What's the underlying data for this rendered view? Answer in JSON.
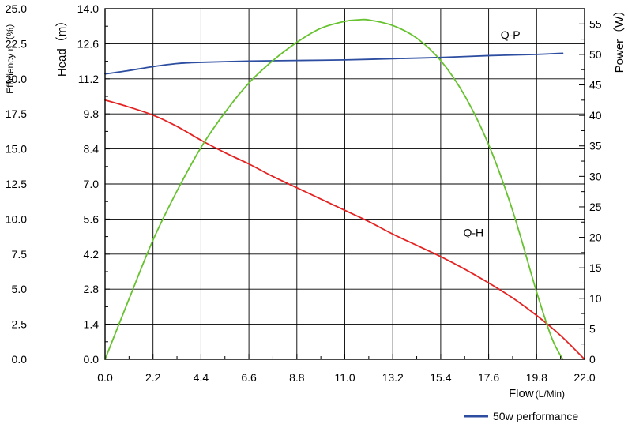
{
  "chart_data": {
    "type": "line",
    "xlabel": "Flow",
    "xlabel_unit": "(L/Min)",
    "x_ticks": [
      "0.0",
      "2.2",
      "4.4",
      "6.6",
      "8.8",
      "11.0",
      "13.2",
      "15.4",
      "17.6",
      "19.8",
      "22.0"
    ],
    "xlim": [
      0,
      22
    ],
    "axes": {
      "efficiency": {
        "label": "Efficiency η（%）",
        "ticks": [
          "0.0",
          "2.5",
          "5.0",
          "7.5",
          "10.0",
          "12.5",
          "15.0",
          "17.5",
          "20.0",
          "22.5",
          "25.0"
        ],
        "lim": [
          0,
          25
        ]
      },
      "head": {
        "label": "Head（m）",
        "ticks": [
          "0.0",
          "1.4",
          "2.8",
          "4.2",
          "5.6",
          "7.0",
          "8.4",
          "9.8",
          "11.2",
          "12.6",
          "14.0"
        ],
        "lim": [
          0,
          14
        ]
      },
      "power": {
        "label": "Power（W）",
        "ticks": [
          "0",
          "5",
          "10",
          "15",
          "20",
          "25",
          "30",
          "35",
          "40",
          "45",
          "50",
          "55"
        ],
        "lim": [
          0,
          57.5
        ]
      }
    },
    "grid": true,
    "legend": {
      "placement": "bottom-right",
      "entries": [
        {
          "label": "50w performance",
          "color": "#2c4da0"
        }
      ]
    },
    "annotations": [
      {
        "text": "Q-P",
        "x": 18.6,
        "head": 12.8
      },
      {
        "text": "Q-H",
        "x": 16.9,
        "head": 4.9
      }
    ],
    "series": [
      {
        "name": "Q-P",
        "axis": "power",
        "color": "#2c4da0",
        "x": [
          0,
          1,
          2.2,
          3.3,
          4.4,
          6.6,
          8.8,
          11.0,
          13.2,
          15.4,
          17.6,
          19.8,
          21.0
        ],
        "y": [
          46.8,
          47.3,
          48.0,
          48.5,
          48.7,
          48.9,
          49.0,
          49.1,
          49.3,
          49.5,
          49.8,
          50.0,
          50.2
        ]
      },
      {
        "name": "Q-H",
        "axis": "head",
        "color": "#e52222",
        "x": [
          0,
          1,
          2.2,
          3.3,
          4.4,
          5.5,
          6.6,
          7.7,
          8.8,
          9.9,
          11.0,
          12.1,
          13.2,
          14.3,
          15.4,
          16.5,
          17.6,
          18.7,
          19.8,
          20.9,
          22.0
        ],
        "y": [
          10.35,
          10.1,
          9.75,
          9.3,
          8.75,
          8.25,
          7.8,
          7.3,
          6.85,
          6.4,
          5.95,
          5.5,
          5.0,
          4.55,
          4.1,
          3.6,
          3.05,
          2.45,
          1.75,
          0.95,
          0.0
        ]
      },
      {
        "name": "η",
        "axis": "efficiency",
        "color": "#66c22e",
        "x": [
          0,
          1.1,
          2.2,
          3.3,
          4.4,
          5.5,
          6.6,
          7.7,
          8.8,
          9.9,
          11.0,
          11.6,
          12.1,
          13.2,
          14.3,
          15.4,
          16.5,
          17.6,
          18.7,
          19.8,
          20.5,
          21.0
        ],
        "y": [
          0.0,
          4.3,
          8.5,
          12.0,
          15.1,
          17.6,
          19.7,
          21.3,
          22.6,
          23.6,
          24.1,
          24.2,
          24.2,
          23.8,
          22.9,
          21.3,
          18.8,
          15.3,
          10.6,
          4.8,
          1.5,
          0.0
        ]
      }
    ]
  }
}
